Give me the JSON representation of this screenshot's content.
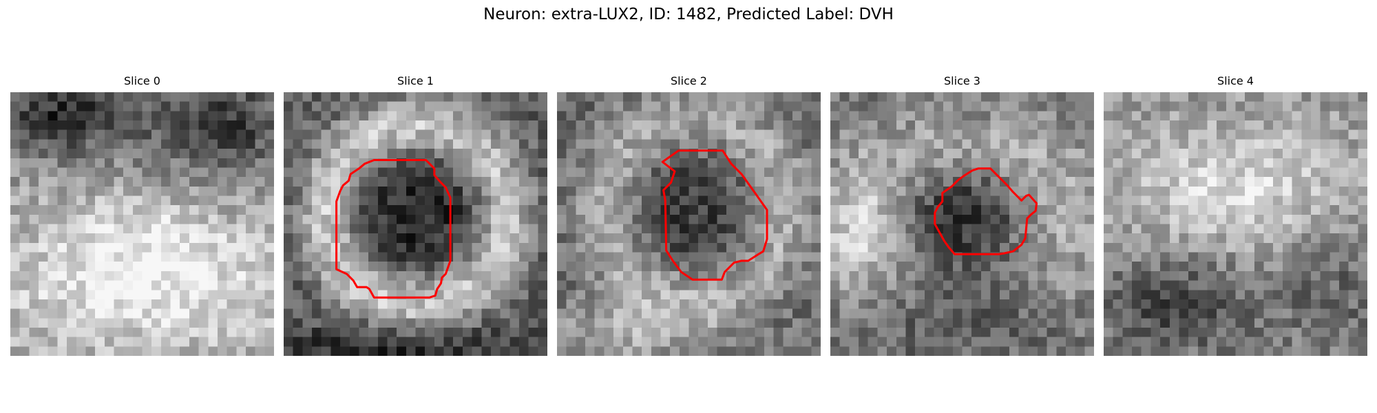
{
  "figure": {
    "title": "Neuron: extra-LUX2, ID: 1482, Predicted Label: DVH"
  },
  "panels": [
    {
      "title": "Slice 0",
      "has_contour": false
    },
    {
      "title": "Slice 1",
      "has_contour": true
    },
    {
      "title": "Slice 2",
      "has_contour": true
    },
    {
      "title": "Slice 3",
      "has_contour": true
    },
    {
      "title": "Slice 4",
      "has_contour": false
    }
  ],
  "colors": {
    "contour": "#ff0000"
  }
}
